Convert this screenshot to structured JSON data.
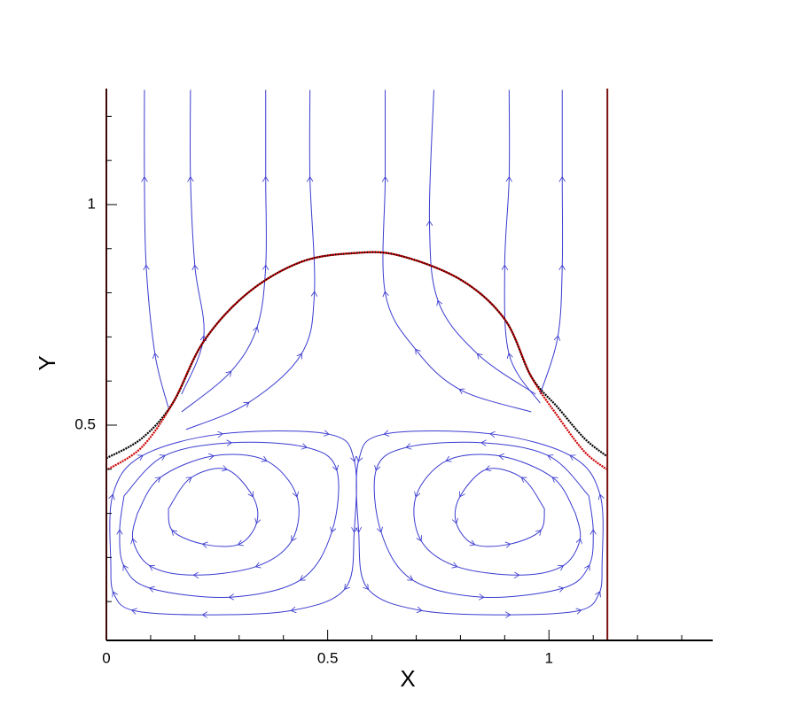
{
  "chart_data": {
    "type": "streamline",
    "xlabel": "X",
    "ylabel": "Y",
    "xlim": [
      0,
      1.37
    ],
    "ylim": [
      0.012,
      1.263
    ],
    "xticks": [
      0,
      0.5,
      1
    ],
    "yticks": [
      0.5,
      1
    ],
    "x_minor_ticks": [
      0.1,
      0.2,
      0.3,
      0.4,
      0.6,
      0.7,
      0.8,
      0.9,
      1.1,
      1.2,
      1.3
    ],
    "y_minor_ticks": [
      0.1,
      0.2,
      0.3,
      0.4,
      0.6,
      0.7,
      0.8,
      0.9,
      1.1,
      1.2
    ],
    "walls": {
      "color": "#7a1010",
      "x": [
        0,
        1.132
      ]
    },
    "interfaces": [
      {
        "color": "#000000",
        "x": [
          0,
          0.08,
          0.15,
          0.22,
          0.32,
          0.44,
          0.56,
          0.66,
          0.8,
          0.9,
          0.96,
          1.02,
          1.08,
          1.13
        ],
        "y": [
          0.425,
          0.47,
          0.55,
          0.69,
          0.8,
          0.87,
          0.89,
          0.885,
          0.83,
          0.74,
          0.61,
          0.54,
          0.47,
          0.43
        ]
      },
      {
        "color": "#cc0000",
        "x": [
          0.004,
          0.08,
          0.15,
          0.22,
          0.32,
          0.44,
          0.56,
          0.66,
          0.8,
          0.9,
          0.96,
          1.02,
          1.08,
          1.13
        ],
        "y": [
          0.4,
          0.45,
          0.55,
          0.69,
          0.8,
          0.87,
          0.89,
          0.885,
          0.83,
          0.74,
          0.61,
          0.52,
          0.44,
          0.4
        ]
      }
    ],
    "streamlines": {
      "color": "#3b3bd0",
      "lines": [
        {
          "x": [
            0.14,
            0.11,
            0.09,
            0.086,
            0.086
          ],
          "y": [
            0.54,
            0.66,
            0.86,
            1.06,
            1.26
          ]
        },
        {
          "x": [
            0.17,
            0.22,
            0.2,
            0.19,
            0.19
          ],
          "y": [
            0.57,
            0.7,
            0.86,
            1.06,
            1.26
          ]
        },
        {
          "x": [
            0.17,
            0.28,
            0.34,
            0.36,
            0.36,
            0.36
          ],
          "y": [
            0.53,
            0.62,
            0.72,
            0.86,
            1.06,
            1.26
          ]
        },
        {
          "x": [
            0.18,
            0.32,
            0.44,
            0.47,
            0.46,
            0.46
          ],
          "y": [
            0.49,
            0.55,
            0.66,
            0.8,
            1.06,
            1.26
          ]
        },
        {
          "x": [
            0.96,
            0.8,
            0.7,
            0.63,
            0.63,
            0.63
          ],
          "y": [
            0.53,
            0.58,
            0.67,
            0.8,
            1.06,
            1.26
          ]
        },
        {
          "x": [
            0.97,
            0.84,
            0.75,
            0.73,
            0.74
          ],
          "y": [
            0.57,
            0.66,
            0.78,
            0.96,
            1.26
          ]
        },
        {
          "x": [
            0.98,
            0.91,
            0.9,
            0.91,
            0.91
          ],
          "y": [
            0.55,
            0.66,
            0.86,
            1.06,
            1.26
          ]
        },
        {
          "x": [
            0.98,
            1.02,
            1.03,
            1.03,
            1.03
          ],
          "y": [
            0.57,
            0.7,
            0.86,
            1.06,
            1.26
          ]
        },
        {
          "x": [
            0.14,
            0.19,
            0.27,
            0.33,
            0.34,
            0.3,
            0.22,
            0.15,
            0.14
          ],
          "y": [
            0.31,
            0.38,
            0.4,
            0.34,
            0.28,
            0.23,
            0.23,
            0.26,
            0.31
          ]
        },
        {
          "x": [
            0.07,
            0.12,
            0.24,
            0.36,
            0.43,
            0.42,
            0.34,
            0.2,
            0.1,
            0.06,
            0.07
          ],
          "y": [
            0.3,
            0.38,
            0.43,
            0.42,
            0.34,
            0.24,
            0.18,
            0.16,
            0.18,
            0.24,
            0.3
          ]
        },
        {
          "x": [
            0.04,
            0.13,
            0.28,
            0.45,
            0.52,
            0.51,
            0.44,
            0.28,
            0.1,
            0.04,
            0.03,
            0.04
          ],
          "y": [
            0.34,
            0.43,
            0.46,
            0.45,
            0.4,
            0.26,
            0.15,
            0.11,
            0.13,
            0.18,
            0.26,
            0.34
          ]
        },
        {
          "x": [
            0.01,
            0.014,
            0.08,
            0.26,
            0.5,
            0.56,
            0.56,
            0.54,
            0.42,
            0.22,
            0.06,
            0.016,
            0.01
          ],
          "y": [
            0.18,
            0.34,
            0.43,
            0.48,
            0.48,
            0.42,
            0.26,
            0.13,
            0.08,
            0.07,
            0.08,
            0.12,
            0.18
          ]
        },
        {
          "x": [
            0.99,
            0.94,
            0.86,
            0.8,
            0.79,
            0.83,
            0.91,
            0.98,
            0.99
          ],
          "y": [
            0.31,
            0.38,
            0.4,
            0.34,
            0.28,
            0.23,
            0.23,
            0.26,
            0.31
          ]
        },
        {
          "x": [
            1.06,
            1.01,
            0.89,
            0.77,
            0.7,
            0.71,
            0.79,
            0.93,
            1.03,
            1.07,
            1.06
          ],
          "y": [
            0.3,
            0.38,
            0.43,
            0.42,
            0.34,
            0.24,
            0.18,
            0.16,
            0.18,
            0.24,
            0.3
          ]
        },
        {
          "x": [
            1.09,
            1.0,
            0.85,
            0.68,
            0.61,
            0.62,
            0.69,
            0.85,
            1.03,
            1.09,
            1.1,
            1.09
          ],
          "y": [
            0.34,
            0.43,
            0.46,
            0.45,
            0.4,
            0.26,
            0.15,
            0.11,
            0.13,
            0.18,
            0.26,
            0.34
          ]
        },
        {
          "x": [
            1.12,
            1.116,
            1.05,
            0.87,
            0.63,
            0.57,
            0.57,
            0.59,
            0.71,
            0.91,
            1.07,
            1.114,
            1.12
          ],
          "y": [
            0.18,
            0.34,
            0.43,
            0.48,
            0.48,
            0.42,
            0.26,
            0.13,
            0.08,
            0.07,
            0.08,
            0.12,
            0.18
          ]
        }
      ]
    }
  }
}
